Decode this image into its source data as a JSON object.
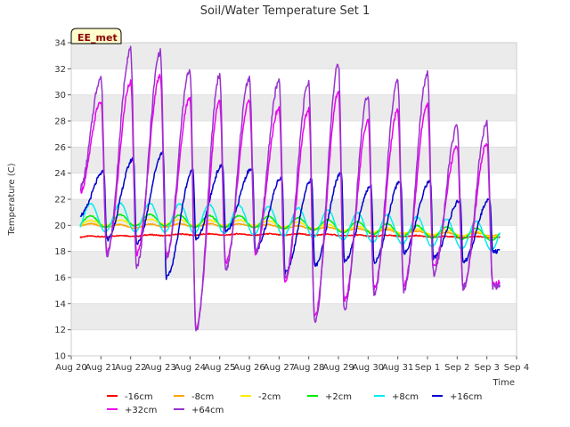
{
  "chart_data": {
    "type": "line",
    "title": "Soil/Water Temperature Set 1",
    "xlabel": "Time",
    "ylabel": "Temperature (C)",
    "badge": "EE_met",
    "ylim": [
      10,
      34
    ],
    "yticks": [
      10,
      12,
      14,
      16,
      18,
      20,
      22,
      24,
      26,
      28,
      30,
      32,
      34
    ],
    "xticks": [
      "Aug 20",
      "Aug 21",
      "Aug 22",
      "Aug 23",
      "Aug 24",
      "Aug 25",
      "Aug 26",
      "Aug 27",
      "Aug 28",
      "Aug 29",
      "Aug 30",
      "Aug 31",
      "Sep 1",
      "Sep 2",
      "Sep 3",
      "Sep 4"
    ],
    "x_start": "Aug 20",
    "x_end": "Sep 4",
    "data_x_range_days": [
      0.3,
      14.45
    ],
    "grid": "horizontal bands",
    "legend_position": "bottom",
    "series": [
      {
        "name": "-16cm",
        "color": "#ff0000",
        "kind": "flat",
        "base": [
          19.1,
          19.15,
          19.2,
          19.25,
          19.3,
          19.3,
          19.3,
          19.3,
          19.3,
          19.25,
          19.2,
          19.2,
          19.15,
          19.1,
          19.1
        ],
        "amp": 0.05
      },
      {
        "name": "-8cm",
        "color": "#ffa500",
        "kind": "flat",
        "base": [
          20.0,
          20.0,
          19.9,
          20.0,
          20.0,
          20.0,
          20.0,
          19.9,
          19.8,
          19.7,
          19.6,
          19.5,
          19.4,
          19.3,
          19.3
        ],
        "amp": 0.12
      },
      {
        "name": "-2cm",
        "color": "#ffee00",
        "kind": "flat",
        "base": [
          20.1,
          20.2,
          20.2,
          20.3,
          20.2,
          20.2,
          20.2,
          20.1,
          20.0,
          19.8,
          19.7,
          19.6,
          19.5,
          19.4,
          19.3
        ],
        "amp": 0.2
      },
      {
        "name": "+2cm",
        "color": "#00ee00",
        "kind": "flat",
        "base": [
          20.3,
          20.3,
          20.4,
          20.4,
          20.3,
          20.3,
          20.3,
          20.2,
          20.1,
          19.9,
          19.8,
          19.6,
          19.5,
          19.4,
          19.3
        ],
        "amp": 0.45
      },
      {
        "name": "+8cm",
        "color": "#00eeee",
        "kind": "flat",
        "base": [
          20.5,
          20.6,
          20.6,
          20.6,
          20.5,
          20.5,
          20.4,
          20.3,
          20.2,
          20.0,
          19.8,
          19.7,
          19.5,
          19.3,
          19.2
        ],
        "amp": 1.1
      },
      {
        "name": "+16cm",
        "color": "#0000cc",
        "kind": "daily",
        "peak_time": 0.6,
        "peaks": [
          24.1,
          25.1,
          25.6,
          24.2,
          24.6,
          24.4,
          23.7,
          23.5,
          24.0,
          23.0,
          23.4,
          23.4,
          21.9,
          22.0
        ],
        "troughs": [
          20.8,
          18.9,
          18.6,
          16.0,
          19.0,
          19.5,
          18.1,
          16.4,
          16.9,
          17.3,
          17.2,
          17.9,
          17.5,
          17.2,
          18.0
        ],
        "noise": 0.3
      },
      {
        "name": "+32cm",
        "color": "#ee00ee",
        "kind": "daily",
        "peak_time": 0.5,
        "peaks": [
          29.5,
          31.0,
          31.5,
          29.8,
          29.5,
          29.5,
          29.0,
          28.9,
          30.2,
          28.0,
          28.8,
          29.3,
          26.0,
          26.3
        ],
        "troughs": [
          22.6,
          17.9,
          17.8,
          17.7,
          12.2,
          17.1,
          17.9,
          15.8,
          13.0,
          14.3,
          15.2,
          15.4,
          16.8,
          15.3,
          15.5,
          16.5
        ],
        "noise": 0.4
      },
      {
        "name": "+64cm",
        "color": "#9933cc",
        "kind": "daily",
        "peak_time": 0.5,
        "peaks": [
          31.3,
          33.5,
          33.3,
          31.9,
          31.5,
          31.3,
          31.0,
          30.9,
          32.3,
          30.0,
          31.0,
          31.6,
          27.5,
          27.8
        ],
        "troughs": [
          22.9,
          17.8,
          16.9,
          17.5,
          12.0,
          16.6,
          17.9,
          15.9,
          12.6,
          13.6,
          14.8,
          14.9,
          16.3,
          15.2,
          15.3,
          16.2
        ],
        "noise": 0.5
      }
    ]
  }
}
